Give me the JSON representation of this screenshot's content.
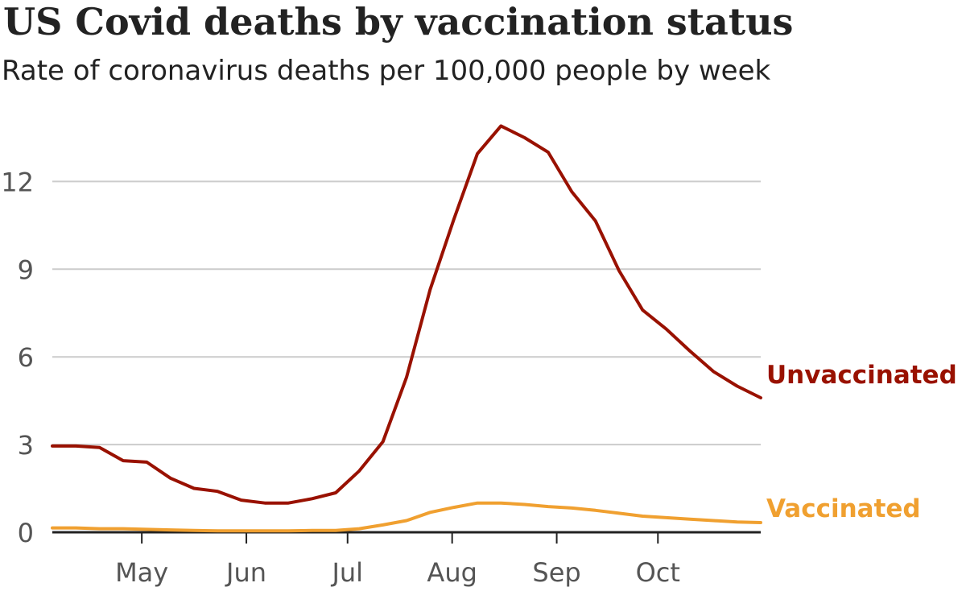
{
  "title": "US Covid deaths by vaccination status",
  "subtitle": "Rate of coronavirus deaths per 100,000 people by week",
  "chart_data": {
    "type": "line",
    "title": "US Covid deaths by vaccination status",
    "subtitle": "Rate of coronavirus deaths per 100,000 people by week",
    "xlabel": "",
    "ylabel": "",
    "ylim": [
      0,
      14
    ],
    "yticks": [
      "0",
      "3",
      "6",
      "9",
      "12"
    ],
    "xticks": [
      "May",
      "Jun",
      "Jul",
      "Aug",
      "Sep",
      "Oct"
    ],
    "x": [
      "2021-04-04",
      "2021-04-11",
      "2021-04-18",
      "2021-04-25",
      "2021-05-02",
      "2021-05-09",
      "2021-05-16",
      "2021-05-23",
      "2021-05-30",
      "2021-06-06",
      "2021-06-13",
      "2021-06-20",
      "2021-06-27",
      "2021-07-04",
      "2021-07-11",
      "2021-07-18",
      "2021-07-25",
      "2021-08-01",
      "2021-08-08",
      "2021-08-15",
      "2021-08-22",
      "2021-08-29",
      "2021-09-05",
      "2021-09-12",
      "2021-09-19",
      "2021-09-26",
      "2021-10-03",
      "2021-10-10",
      "2021-10-17",
      "2021-10-24",
      "2021-10-31"
    ],
    "grid": true,
    "legend": "direct labels at right end of lines",
    "series": [
      {
        "name": "Unvaccinated",
        "color": "#991100",
        "values": [
          2.95,
          2.95,
          2.9,
          2.45,
          2.4,
          1.85,
          1.5,
          1.4,
          1.1,
          1.0,
          1.0,
          1.15,
          1.35,
          2.1,
          3.1,
          5.3,
          8.3,
          10.7,
          12.95,
          13.9,
          13.5,
          13.0,
          11.65,
          10.65,
          8.95,
          7.6,
          6.95,
          6.2,
          5.5,
          5.0,
          4.6
        ],
        "end_label": "Unvaccinated"
      },
      {
        "name": "Vaccinated",
        "color": "#f0a030",
        "values": [
          0.15,
          0.15,
          0.12,
          0.12,
          0.1,
          0.08,
          0.06,
          0.05,
          0.05,
          0.05,
          0.05,
          0.06,
          0.06,
          0.12,
          0.25,
          0.4,
          0.68,
          0.85,
          1.0,
          1.0,
          0.95,
          0.88,
          0.83,
          0.75,
          0.65,
          0.55,
          0.5,
          0.45,
          0.4,
          0.35,
          0.33
        ],
        "end_label": "Vaccinated"
      }
    ]
  }
}
